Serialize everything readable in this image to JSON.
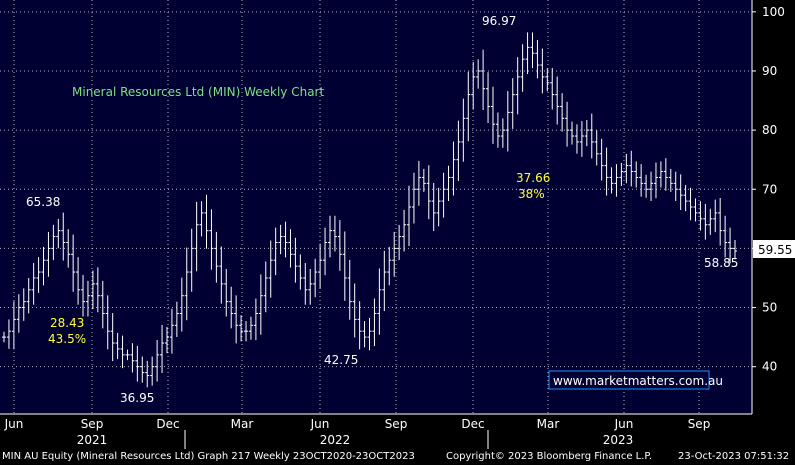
{
  "chart_data": {
    "type": "ohlc",
    "title": "Mineral Resources Ltd (MIN) Weekly Chart",
    "ylim": [
      32,
      102
    ],
    "y_ticks": [
      40,
      50,
      60,
      70,
      80,
      90,
      100
    ],
    "y_tick_labels": [
      "40",
      "50",
      "60",
      "70",
      "80",
      "90",
      "100"
    ],
    "month_labels": [
      "Jun",
      "Sep",
      "Dec",
      "Mar",
      "Jun",
      "Sep",
      "Dec",
      "Mar",
      "Jun",
      "Sep"
    ],
    "year_labels": [
      "2021",
      "2022",
      "2023"
    ],
    "last_price": "59.55",
    "grid": true,
    "colors": {
      "background": "#000033",
      "bars": "#ffffff",
      "grid": "#ffffff",
      "title": "#7fe07f",
      "highlight": "#ffff33",
      "link_box": "#1e90ff"
    },
    "closes": [
      45,
      46,
      48,
      50,
      51,
      53,
      55,
      56,
      58,
      60,
      62,
      63,
      61,
      59,
      56,
      53,
      51,
      52,
      54,
      52,
      49,
      46,
      44,
      43,
      42,
      42,
      41,
      40,
      39,
      38.5,
      40,
      42,
      44,
      45,
      47,
      49,
      52,
      56,
      60,
      64,
      66,
      63,
      60,
      57,
      54,
      51,
      49,
      47,
      46,
      46,
      47,
      49,
      52,
      55,
      58,
      61,
      62,
      61,
      59,
      57,
      55,
      53,
      54,
      56,
      58,
      61,
      63,
      62,
      59,
      55,
      51,
      48,
      46,
      45,
      46,
      49,
      53,
      56,
      58,
      60,
      62,
      64,
      67,
      70,
      72,
      71,
      68,
      66,
      68,
      70,
      72,
      75,
      78,
      82,
      86,
      89,
      90,
      87,
      84,
      81,
      79,
      80,
      83,
      86,
      89,
      92,
      94,
      93,
      91,
      89,
      88,
      86,
      84,
      82,
      80,
      79,
      78,
      79,
      80,
      78,
      76,
      74,
      72,
      71,
      72,
      73,
      74,
      73,
      72,
      71,
      70,
      71,
      72,
      73,
      72,
      71,
      70,
      69,
      68,
      67,
      66,
      65,
      64,
      65,
      66,
      63,
      61,
      60,
      59.55
    ],
    "annotations": {
      "high_2021": "65.38",
      "low_2021": "36.95",
      "low_2022": "42.75",
      "high_2023": "96.97",
      "last_low": "58.85",
      "gain_value": "28.43",
      "gain_pct": "43.5%",
      "drop_value": "37.66",
      "drop_pct": "38%"
    },
    "link_text": "www.marketmatters.com.au"
  },
  "footer": {
    "left": "MIN AU Equity (Mineral Resources Ltd) Graph 217  Weekly 23OCT2020-23OCT2023",
    "center": "Copyright© 2023 Bloomberg Finance L.P.",
    "right": "23-Oct-2023 07:51:32"
  }
}
